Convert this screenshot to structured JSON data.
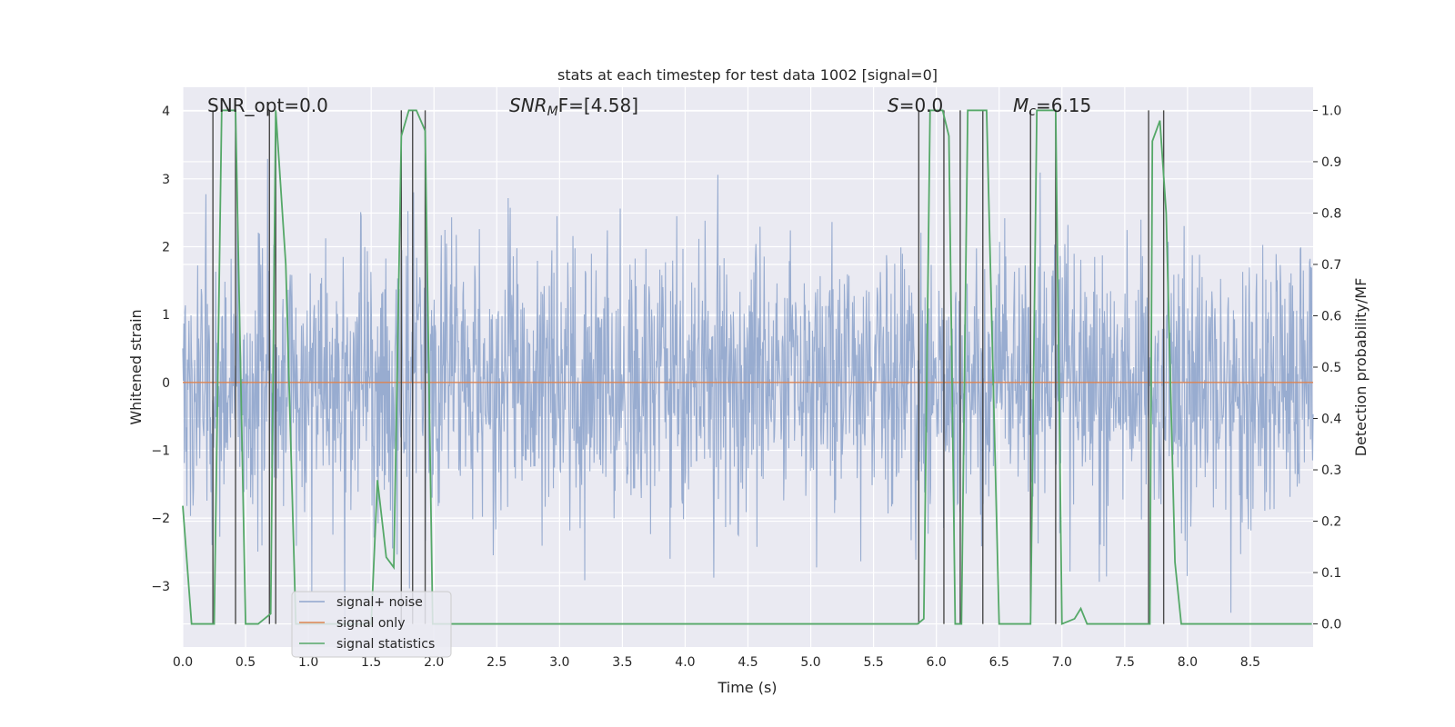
{
  "chart_data": {
    "type": "line",
    "title": "stats at each timestep for test data 1002 [signal=0]",
    "xlabel": "Time (s)",
    "ylabel": "Whitened strain",
    "y2label": "Detection probability/MF",
    "xlim": [
      0.0,
      9.0
    ],
    "ylim": [
      -3.9,
      4.35
    ],
    "y2lim": [
      -0.045,
      1.045
    ],
    "xticks": [
      "0.0",
      "0.5",
      "1.0",
      "1.5",
      "2.0",
      "2.5",
      "3.0",
      "3.5",
      "4.0",
      "4.5",
      "5.0",
      "5.5",
      "6.0",
      "6.5",
      "7.0",
      "7.5",
      "8.0",
      "8.5"
    ],
    "yticks": [
      "−3",
      "−2",
      "−1",
      "0",
      "1",
      "2",
      "3",
      "4"
    ],
    "y2ticks": [
      "0.0",
      "0.1",
      "0.2",
      "0.3",
      "0.4",
      "0.5",
      "0.6",
      "0.7",
      "0.8",
      "0.9",
      "1.0"
    ],
    "annotations": {
      "snr_opt": "SNR_opt=0.0",
      "snr_mf_base": "SNR",
      "snr_mf_sub": "M",
      "snr_mf_rest": "F=[4.58]",
      "s_sym": "S",
      "s_rest": "=0.0",
      "mc_base": "M",
      "mc_sub": "c",
      "mc_rest": "=6.15"
    },
    "legend": {
      "placement": "lower-left",
      "entries": [
        "signal+ noise",
        "signal only",
        "signal statistics"
      ]
    },
    "colors": {
      "noise": "#8fa5cc",
      "signal_only": "#dd8452",
      "statistics": "#55a868",
      "vlines": "#4a4a4a",
      "plot_bg": "#eaeaf2",
      "grid": "#ffffff"
    },
    "series": [
      {
        "name": "signal+ noise",
        "description_values": "white Gaussian noise, std ~1.0, amplitude within about [-3.6, 4.0]",
        "std": 1.0,
        "samples": 2200
      },
      {
        "name": "signal only",
        "x": [
          0.0,
          9.0
        ],
        "y": [
          0.0,
          0.0
        ]
      },
      {
        "name": "signal statistics",
        "axis": "right",
        "x": [
          0.0,
          0.07,
          0.24,
          0.25,
          0.31,
          0.42,
          0.46,
          0.5,
          0.6,
          0.7,
          0.74,
          0.82,
          0.9,
          1.0,
          1.5,
          1.55,
          1.62,
          1.68,
          1.74,
          1.8,
          1.86,
          1.93,
          1.99,
          2.04,
          2.1,
          3.9,
          5.85,
          5.9,
          5.95,
          6.05,
          6.1,
          6.15,
          6.2,
          6.25,
          6.3,
          6.4,
          6.5,
          6.55,
          6.6,
          6.7,
          6.75,
          6.8,
          6.95,
          7.0,
          7.1,
          7.15,
          7.2,
          7.25,
          7.35,
          7.45,
          7.55,
          7.65,
          7.7,
          7.72,
          7.78,
          7.83,
          7.9,
          7.95,
          8.05,
          8.3,
          8.99
        ],
        "y": [
          0.23,
          0.0,
          0.0,
          0.0,
          1.0,
          1.0,
          0.5,
          0.0,
          0.0,
          0.02,
          1.0,
          0.7,
          0.0,
          0.0,
          0.0,
          0.28,
          0.13,
          0.11,
          0.95,
          1.0,
          1.0,
          0.96,
          0.0,
          0.0,
          0.0,
          0.0,
          0.0,
          0.01,
          1.0,
          1.0,
          0.95,
          0.0,
          0.0,
          1.0,
          1.0,
          1.0,
          0.0,
          0.0,
          0.0,
          0.0,
          0.0,
          1.0,
          1.0,
          0.0,
          0.01,
          0.03,
          0.0,
          0.0,
          0.0,
          0.0,
          0.0,
          0.0,
          0.0,
          0.94,
          0.98,
          0.8,
          0.12,
          0.0,
          0.0,
          0.0,
          0.0
        ]
      }
    ],
    "vertical_lines_x": [
      0.24,
      0.42,
      0.69,
      0.74,
      1.74,
      1.83,
      1.93,
      5.86,
      6.06,
      6.19,
      6.37,
      6.75,
      6.95,
      7.69,
      7.81
    ],
    "vertical_lines_ylim_right": [
      0.0,
      1.0
    ]
  }
}
